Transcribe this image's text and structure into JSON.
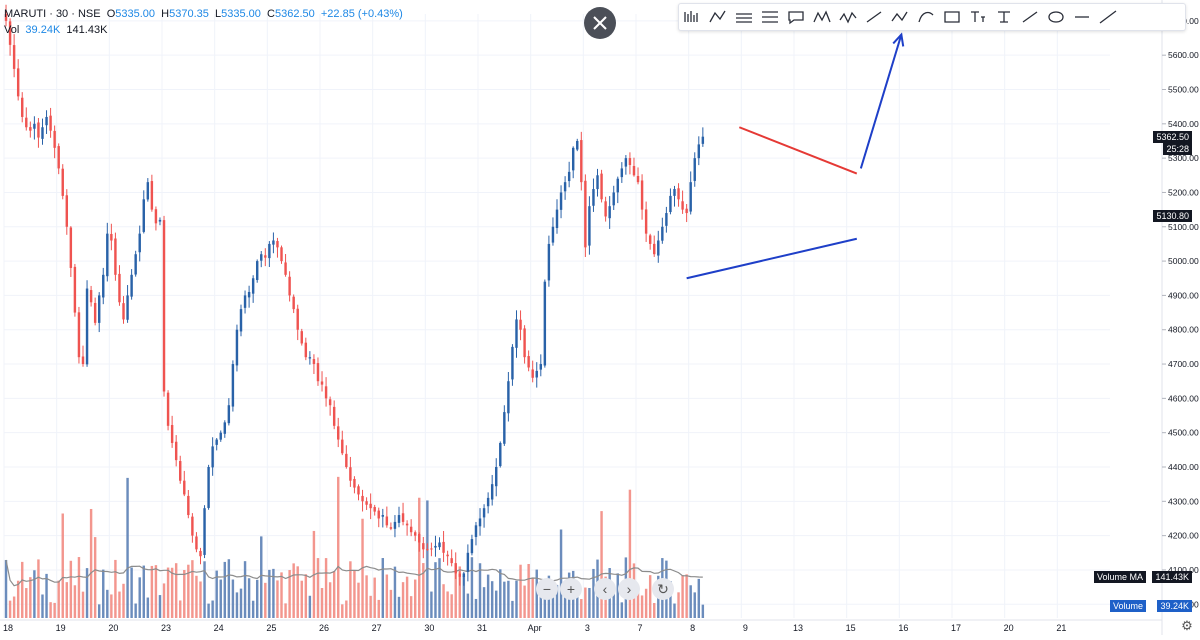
{
  "header": {
    "symbol": "MARUTI · 30 · NSE",
    "open_label": "O",
    "open": "5335.00",
    "high_label": "H",
    "high": "5370.35",
    "low_label": "L",
    "low": "5335.00",
    "close_label": "C",
    "close": "5362.50",
    "change": "+22.85 (+0.43%)",
    "vol_label": "Vol",
    "vol_value": "39.24K",
    "vol_ma": "141.43K"
  },
  "tags": {
    "price_last": "5362.50",
    "countdown": "25:28",
    "price_cross": "5130.80",
    "volume_ma_label": "Volume MA",
    "volume_ma_value": "141.43K",
    "volume_label": "Volume",
    "volume_value": "39.24K"
  },
  "toolbar": {
    "tools": [
      "bars-pattern-icon",
      "abcd-pattern-icon",
      "parallel-channel-icon",
      "pitchfork-icon",
      "callout-icon",
      "xabcd-pattern-icon",
      "wave-icon",
      "trend-line-icon",
      "abc-pattern-icon",
      "curve-icon",
      "rectangle-icon",
      "text-tool-icon",
      "cursor-text-icon",
      "ray-icon",
      "ellipse-icon",
      "horizontal-ray-icon",
      "extended-line-icon"
    ]
  },
  "nav": {
    "zoom_out_icon": "minus-icon",
    "zoom_in_icon": "plus-icon",
    "scroll_left_icon": "chevron-left-icon",
    "scroll_right_icon": "chevron-right-icon",
    "reset_icon": "reset-icon"
  },
  "colors": {
    "up": "#2962a8",
    "down": "#ef5350",
    "vol_up": "#5b7fb5",
    "vol_down": "#f28b82",
    "triangle_top": "#e53935",
    "triangle_bottom": "#1e3fc8",
    "arrow": "#1e3fc8",
    "ma": "#8c8c8c"
  },
  "chart_data": {
    "type": "candlestick",
    "interval": "30 min",
    "price_axis": {
      "ticks": [
        4000,
        4100,
        4200,
        4300,
        4400,
        4500,
        4600,
        4700,
        4800,
        4900,
        5000,
        5100,
        5200,
        5300,
        5400,
        5500,
        5600,
        5700
      ],
      "tick_labels": [
        "4000.00",
        "4100.00",
        "4200.00",
        "4300.00",
        "4400.00",
        "4500.00",
        "4600.00",
        "4700.00",
        "4800.00",
        "4900.00",
        "5000.00",
        "5100.00",
        "5200.00",
        "5300.00",
        "5400.00",
        "5500.00",
        "5600.00",
        "5700.00"
      ],
      "range": [
        3960,
        5720
      ]
    },
    "time_axis": {
      "labels": [
        "18",
        "19",
        "20",
        "23",
        "24",
        "25",
        "26",
        "27",
        "30",
        "31",
        "Apr",
        "3",
        "7",
        "8",
        "9",
        "13",
        "15",
        "16",
        "17",
        "20",
        "21"
      ],
      "session_index": [
        0,
        1,
        2,
        3,
        4,
        5,
        6,
        7,
        8,
        9,
        10,
        11,
        12,
        13,
        14,
        15,
        16,
        17,
        18,
        19,
        20
      ]
    },
    "bars_per_session": 13,
    "closes": [
      5700,
      5630,
      5560,
      5480,
      5420,
      5390,
      5380,
      5400,
      5360,
      5390,
      5420,
      5380,
      5330,
      5270,
      5190,
      5100,
      4980,
      4850,
      4720,
      4700,
      4920,
      4880,
      4820,
      4900,
      4960,
      5080,
      5060,
      4960,
      4880,
      4830,
      4900,
      4960,
      5020,
      5080,
      5180,
      5230,
      5150,
      5110,
      5120,
      4620,
      4520,
      4470,
      4420,
      4360,
      4320,
      4260,
      4200,
      4160,
      4140,
      4280,
      4400,
      4460,
      4480,
      4500,
      4530,
      4580,
      4700,
      4800,
      4860,
      4900,
      4910,
      4950,
      5000,
      5020,
      5010,
      5050,
      5060,
      5040,
      5000,
      4960,
      4900,
      4860,
      4800,
      4760,
      4720,
      4720,
      4700,
      4650,
      4640,
      4600,
      4580,
      4520,
      4480,
      4440,
      4400,
      4360,
      4340,
      4320,
      4300,
      4290,
      4280,
      4270,
      4250,
      4260,
      4230,
      4220,
      4240,
      4260,
      4240,
      4230,
      4210,
      4200,
      4180,
      4160,
      4160,
      4160,
      4170,
      4180,
      4150,
      4140,
      4120,
      4090,
      4080,
      4090,
      4150,
      4190,
      4230,
      4250,
      4280,
      4310,
      4350,
      4400,
      4470,
      4560,
      4650,
      4750,
      4830,
      4800,
      4720,
      4690,
      4660,
      4680,
      4700,
      4940,
      5050,
      5100,
      5150,
      5200,
      5230,
      5260,
      5330,
      5350,
      5230,
      5040,
      5160,
      5210,
      5250,
      5180,
      5130,
      5160,
      5200,
      5240,
      5270,
      5300,
      5280,
      5250,
      5230,
      5150,
      5080,
      5050,
      5020,
      5060,
      5100,
      5140,
      5190,
      5210,
      5180,
      5150,
      5140,
      5230,
      5300,
      5340,
      5362.5
    ],
    "volume_axis": {
      "range": [
        0,
        500000
      ]
    },
    "volume_ma_last": "141.43K",
    "volume_last": "39.24K",
    "last_price": 5362.5,
    "drawings": [
      {
        "name": "triangle-upper-line",
        "from": {
          "bar": 181,
          "price": 5390
        },
        "to": {
          "bar": 210,
          "price": 5255
        }
      },
      {
        "name": "triangle-lower-line",
        "from": {
          "bar": 168,
          "price": 4950
        },
        "to": {
          "bar": 210,
          "price": 5065
        }
      },
      {
        "name": "breakout-arrow",
        "from": {
          "bar": 211,
          "price": 5270
        },
        "to": {
          "bar": 221,
          "price": 5660
        }
      }
    ]
  }
}
